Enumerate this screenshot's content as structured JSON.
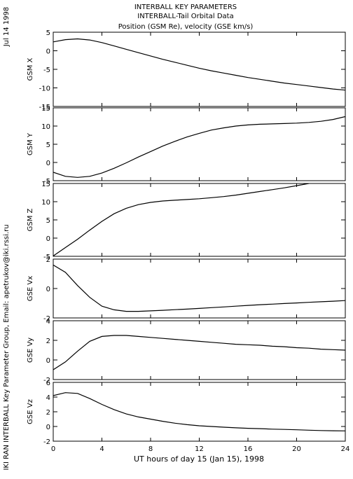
{
  "header": {
    "title_lines": [
      "INTERBALL KEY PARAMETERS",
      "INTERBALL-Tail Orbital Data",
      "Position (GSM Re), velocity (GSE km/s)"
    ],
    "date_label": "Jul 14 1998",
    "credit": "IKI RAN INTERBALL Key Parameter Group, Email: apetrukov@iki.rssi.ru"
  },
  "colors": {
    "line": "#000000",
    "background": "#ffffff"
  },
  "chart_data": {
    "type": "line",
    "xlabel": "UT hours of day  15 (Jan 15), 1998",
    "xlim": [
      0,
      24
    ],
    "xticks": [
      0,
      4,
      8,
      12,
      16,
      20,
      24
    ],
    "x": [
      0,
      1,
      2,
      3,
      4,
      5,
      6,
      7,
      8,
      9,
      10,
      11,
      12,
      13,
      14,
      15,
      16,
      17,
      18,
      19,
      20,
      21,
      22,
      23,
      24
    ],
    "panels": [
      {
        "name": "GSM X",
        "ylim": [
          -15,
          5
        ],
        "yticks": [
          5,
          0,
          -5,
          -10,
          -15
        ],
        "y": [
          2.4,
          3.0,
          3.2,
          2.9,
          2.2,
          1.3,
          0.4,
          -0.5,
          -1.4,
          -2.3,
          -3.1,
          -3.9,
          -4.7,
          -5.4,
          -6.0,
          -6.6,
          -7.2,
          -7.7,
          -8.2,
          -8.7,
          -9.1,
          -9.5,
          -9.9,
          -10.3,
          -10.6
        ]
      },
      {
        "name": "GSM Y",
        "ylim": [
          -5,
          15
        ],
        "yticks": [
          15,
          10,
          5,
          0,
          -5
        ],
        "y": [
          -2.7,
          -3.8,
          -4.1,
          -3.8,
          -2.9,
          -1.6,
          -0.1,
          1.5,
          3.0,
          4.5,
          5.8,
          7.0,
          8.0,
          8.9,
          9.5,
          10.0,
          10.3,
          10.5,
          10.6,
          10.7,
          10.8,
          11.0,
          11.3,
          11.8,
          12.6
        ]
      },
      {
        "name": "GSM Z",
        "ylim": [
          -5,
          15
        ],
        "yticks": [
          15,
          10,
          5,
          0,
          -5
        ],
        "y": [
          -4.9,
          -2.6,
          -0.3,
          2.2,
          4.6,
          6.7,
          8.2,
          9.2,
          9.8,
          10.2,
          10.4,
          10.6,
          10.8,
          11.1,
          11.4,
          11.8,
          12.3,
          12.8,
          13.3,
          13.8,
          14.4,
          15.0,
          15.6,
          16.2,
          16.8
        ]
      },
      {
        "name": "GSE Vx",
        "ylim": [
          -2,
          2
        ],
        "yticks": [
          2,
          0,
          -2
        ],
        "y": [
          1.6,
          1.1,
          0.2,
          -0.6,
          -1.2,
          -1.45,
          -1.55,
          -1.55,
          -1.52,
          -1.48,
          -1.44,
          -1.4,
          -1.35,
          -1.3,
          -1.25,
          -1.2,
          -1.15,
          -1.1,
          -1.06,
          -1.02,
          -0.98,
          -0.94,
          -0.9,
          -0.86,
          -0.82
        ]
      },
      {
        "name": "GSE Vy",
        "ylim": [
          -2,
          4
        ],
        "yticks": [
          4,
          2,
          0,
          -2
        ],
        "y": [
          -1.0,
          -0.2,
          0.9,
          1.9,
          2.4,
          2.5,
          2.5,
          2.4,
          2.3,
          2.2,
          2.1,
          2.0,
          1.9,
          1.8,
          1.7,
          1.6,
          1.55,
          1.5,
          1.4,
          1.35,
          1.25,
          1.2,
          1.1,
          1.05,
          1.0
        ]
      },
      {
        "name": "GSE Vz",
        "ylim": [
          -2,
          6
        ],
        "yticks": [
          6,
          4,
          2,
          0,
          -2
        ],
        "y": [
          4.2,
          4.6,
          4.5,
          3.8,
          3.0,
          2.3,
          1.7,
          1.3,
          1.0,
          0.7,
          0.45,
          0.25,
          0.1,
          0.0,
          -0.1,
          -0.18,
          -0.25,
          -0.3,
          -0.36,
          -0.4,
          -0.45,
          -0.5,
          -0.55,
          -0.58,
          -0.6
        ]
      }
    ]
  }
}
